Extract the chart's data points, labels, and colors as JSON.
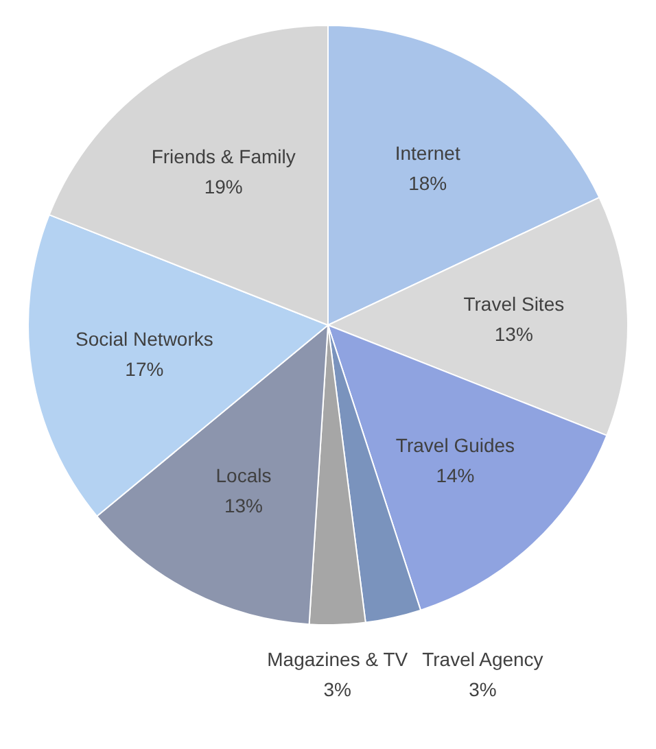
{
  "chart_data": {
    "type": "pie",
    "categories": [
      "Internet",
      "Travel Sites",
      "Travel Guides",
      "Travel Agency",
      "Magazines & TV",
      "Locals",
      "Social Networks",
      "Friends & Family"
    ],
    "values": [
      18,
      13,
      14,
      3,
      3,
      13,
      17,
      19
    ],
    "value_labels": [
      "18%",
      "13%",
      "14%",
      "3%",
      "3%",
      "13%",
      "17%",
      "19%"
    ],
    "colors": [
      "#a9c4ea",
      "#d9d9d9",
      "#8fa3e0",
      "#7a93bd",
      "#a6a6a6",
      "#8c95ad",
      "#b4d2f2",
      "#d6d6d6"
    ],
    "legend": false
  }
}
